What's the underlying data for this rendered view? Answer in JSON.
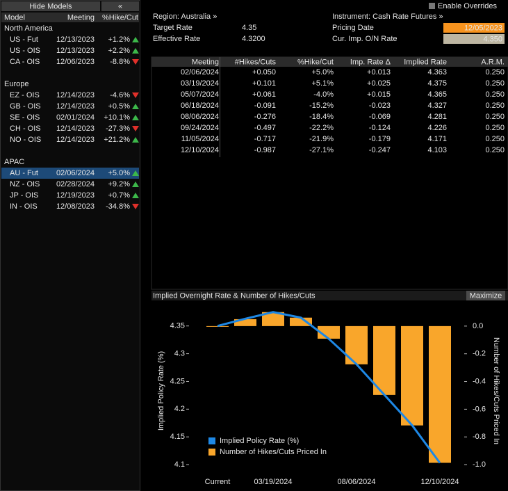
{
  "top_bar": {
    "enable_overrides": "Enable Overrides"
  },
  "models_panel": {
    "hide_button": "Hide Models",
    "collapse_button": "«",
    "columns": [
      "Model",
      "Meeting",
      "%Hike/Cut"
    ],
    "groups": [
      {
        "name": "North America",
        "rows": [
          {
            "model": "US - Fut",
            "meeting": "12/13/2023",
            "change": "+1.2%"
          },
          {
            "model": "US - OIS",
            "meeting": "12/13/2023",
            "change": "+2.2%"
          },
          {
            "model": "CA - OIS",
            "meeting": "12/06/2023",
            "change": "-8.8%"
          }
        ]
      },
      {
        "name": "Europe",
        "rows": [
          {
            "model": "EZ - OIS",
            "meeting": "12/14/2023",
            "change": "-4.6%"
          },
          {
            "model": "GB - OIS",
            "meeting": "12/14/2023",
            "change": "+0.5%"
          },
          {
            "model": "SE - OIS",
            "meeting": "02/01/2024",
            "change": "+10.1%"
          },
          {
            "model": "CH - OIS",
            "meeting": "12/14/2023",
            "change": "-27.3%"
          },
          {
            "model": "NO - OIS",
            "meeting": "12/14/2023",
            "change": "+21.2%"
          }
        ]
      },
      {
        "name": "APAC",
        "rows": [
          {
            "model": "AU - Fut",
            "meeting": "02/06/2024",
            "change": "+5.0%",
            "selected": true
          },
          {
            "model": "NZ - OIS",
            "meeting": "02/28/2024",
            "change": "+9.2%"
          },
          {
            "model": "JP - OIS",
            "meeting": "12/19/2023",
            "change": "+0.7%"
          },
          {
            "model": "IN - OIS",
            "meeting": "12/08/2023",
            "change": "-34.8%"
          }
        ]
      }
    ]
  },
  "summary": {
    "region": "Region: Australia »",
    "target_rate_label": "Target Rate",
    "target_rate": "4.35",
    "effective_rate_label": "Effective Rate",
    "effective_rate": "4.3200",
    "instrument": "Instrument: Cash Rate Futures »",
    "pricing_date_label": "Pricing Date",
    "pricing_date": "12/05/2023",
    "cur_imp_label": "Cur. Imp. O/N Rate",
    "cur_imp": "4.350"
  },
  "table": {
    "columns": [
      "Meeting",
      "#Hikes/Cuts",
      "%Hike/Cut",
      "Imp. Rate Δ",
      "Implied Rate",
      "A.R.M."
    ],
    "rows": [
      [
        "02/06/2024",
        "+0.050",
        "+5.0%",
        "+0.013",
        "4.363",
        "0.250"
      ],
      [
        "03/19/2024",
        "+0.101",
        "+5.1%",
        "+0.025",
        "4.375",
        "0.250"
      ],
      [
        "05/07/2024",
        "+0.061",
        "-4.0%",
        "+0.015",
        "4.365",
        "0.250"
      ],
      [
        "06/18/2024",
        "-0.091",
        "-15.2%",
        "-0.023",
        "4.327",
        "0.250"
      ],
      [
        "08/06/2024",
        "-0.276",
        "-18.4%",
        "-0.069",
        "4.281",
        "0.250"
      ],
      [
        "09/24/2024",
        "-0.497",
        "-22.2%",
        "-0.124",
        "4.226",
        "0.250"
      ],
      [
        "11/05/2024",
        "-0.717",
        "-21.9%",
        "-0.179",
        "4.171",
        "0.250"
      ],
      [
        "12/10/2024",
        "-0.987",
        "-27.1%",
        "-0.247",
        "4.103",
        "0.250"
      ]
    ]
  },
  "chart_panel": {
    "maximize": "Maximize"
  },
  "chart_data": {
    "type": "combo",
    "title": "Implied Overnight Rate & Number of Hikes/Cuts",
    "y_label": "Implied Policy Rate (%)",
    "y2_label": "Number of Hikes/Cuts Priced In",
    "categories": [
      "Current",
      null,
      "03/19/2024",
      null,
      null,
      "08/06/2024",
      null,
      null,
      "12/10/2024"
    ],
    "series": [
      {
        "name": "Implied Policy Rate (%)",
        "type": "line",
        "color": "#1e88e5",
        "values": [
          4.35,
          4.363,
          4.375,
          4.365,
          4.327,
          4.281,
          4.226,
          4.171,
          4.103
        ]
      },
      {
        "name": "Number of Hikes/Cuts Priced In",
        "type": "bar",
        "axis": "y2",
        "color": "#f9a62b",
        "values": [
          0,
          0.05,
          0.101,
          0.061,
          -0.091,
          -0.276,
          -0.497,
          -0.717,
          -0.987
        ]
      }
    ],
    "ylim": [
      4.08,
      4.386
    ],
    "yticks": [
      4.1,
      4.15,
      4.2,
      4.25,
      4.3,
      4.35
    ],
    "y2lim": [
      -1.08,
      0.145
    ],
    "y2ticks": [
      {
        "value": 0,
        "label": "0.0"
      },
      -0.2,
      -0.4,
      -0.6,
      -0.8,
      {
        "value": -1,
        "label": "-1.0"
      }
    ],
    "legend": "lower left"
  }
}
